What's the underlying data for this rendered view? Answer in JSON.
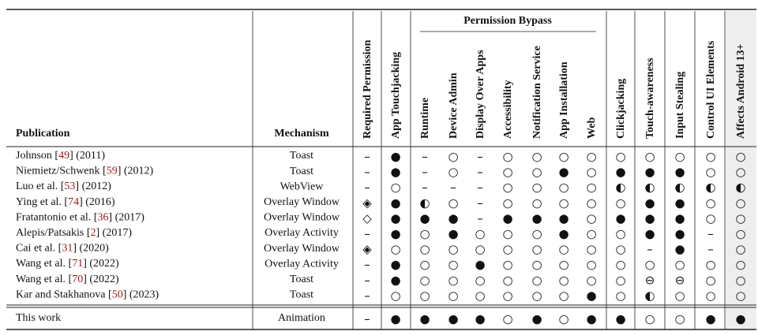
{
  "table": {
    "header": {
      "publication": "Publication",
      "mechanism": "Mechanism",
      "group": "Permission Bypass",
      "columns": [
        "Required Permission",
        "App Touchjacking",
        "Runtime",
        "Device Admin",
        "Display Over Apps",
        "Accessibility",
        "Notification Service",
        "App Installation",
        "Web",
        "Clickjacking",
        "Touch-awareness",
        "Input Stealing",
        "Control UI Elements",
        "Affects Android 13+"
      ]
    },
    "rows": [
      {
        "pub": [
          "Johnson [",
          "49",
          "] (2011)"
        ],
        "mechanism": "Toast",
        "cells": [
          "–",
          "●",
          "–",
          "○",
          "–",
          "○",
          "○",
          "○",
          "○",
          "○",
          "○",
          "○",
          "○",
          "○"
        ]
      },
      {
        "pub": [
          "Niemietz/Schwenk [",
          "59",
          "] (2012)"
        ],
        "mechanism": "Toast",
        "cells": [
          "–",
          "●",
          "–",
          "○",
          "–",
          "○",
          "○",
          "●",
          "○",
          "●",
          "●",
          "●",
          "○",
          "○"
        ]
      },
      {
        "pub": [
          "Luo et al. [",
          "53",
          "] (2012)"
        ],
        "mechanism": "WebView",
        "cells": [
          "–",
          "○",
          "–",
          "–",
          "–",
          "○",
          "○",
          "○",
          "○",
          "◐",
          "◐",
          "◐",
          "◐",
          "◐"
        ]
      },
      {
        "pub": [
          "Ying et al. [",
          "74",
          "] (2016)"
        ],
        "mechanism": "Overlay Window",
        "cells": [
          "◈",
          "●",
          "◐",
          "○",
          "–",
          "○",
          "○",
          "○",
          "○",
          "○",
          "●",
          "●",
          "○",
          "○"
        ]
      },
      {
        "pub": [
          "Fratantonio et al. [",
          "36",
          "] (2017)"
        ],
        "mechanism": "Overlay Window",
        "cells": [
          "◇",
          "●",
          "●",
          "●",
          "–",
          "●",
          "●",
          "●",
          "○",
          "●",
          "●",
          "●",
          "○",
          "○"
        ]
      },
      {
        "pub": [
          "Alepis/Patsakis [",
          "2",
          "] (2017)"
        ],
        "mechanism": "Overlay Activity",
        "cells": [
          "–",
          "●",
          "○",
          "●",
          "○",
          "○",
          "○",
          "●",
          "○",
          "○",
          "●",
          "●",
          "–",
          "○"
        ]
      },
      {
        "pub": [
          "Cai et al. [",
          "31",
          "] (2020)"
        ],
        "mechanism": "Overlay Window",
        "cells": [
          "◈",
          "○",
          "○",
          "○",
          "○",
          "○",
          "○",
          "○",
          "○",
          "○",
          "–",
          "●",
          "–",
          "○"
        ]
      },
      {
        "pub": [
          "Wang et al. [",
          "71",
          "] (2022)"
        ],
        "mechanism": "Overlay Activity",
        "cells": [
          "–",
          "●",
          "○",
          "○",
          "●",
          "○",
          "○",
          "○",
          "○",
          "○",
          "○",
          "○",
          "○",
          "○"
        ]
      },
      {
        "pub": [
          "Wang et al. [",
          "70",
          "] (2022)"
        ],
        "mechanism": "Toast",
        "cells": [
          "–",
          "●",
          "○",
          "○",
          "○",
          "○",
          "○",
          "○",
          "○",
          "○",
          "⊖",
          "⊖",
          "○",
          "○"
        ]
      },
      {
        "pub": [
          "Kar and Stakhanova [",
          "50",
          "] (2023)"
        ],
        "mechanism": "Toast",
        "cells": [
          "–",
          "○",
          "○",
          "○",
          "○",
          "○",
          "○",
          "○",
          "●",
          "○",
          "◐",
          "○",
          "○",
          "○"
        ]
      }
    ],
    "final": {
      "pub": "This work",
      "mechanism": "Animation",
      "cells": [
        "–",
        "●",
        "●",
        "●",
        "●",
        "○",
        "●",
        "○",
        "●",
        "●",
        "○",
        "○",
        "●",
        "●"
      ]
    }
  }
}
